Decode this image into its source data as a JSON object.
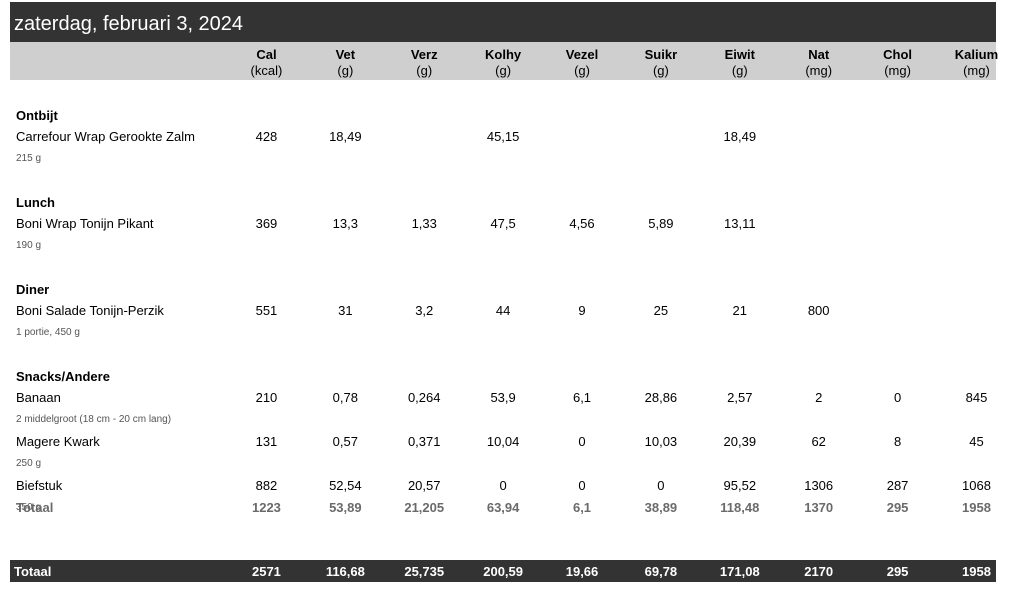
{
  "date": "zaterdag, februari 3, 2024",
  "columns": [
    {
      "label": "Cal",
      "unit": "(kcal)"
    },
    {
      "label": "Vet",
      "unit": "(g)"
    },
    {
      "label": "Verz",
      "unit": "(g)"
    },
    {
      "label": "Kolhy",
      "unit": "(g)"
    },
    {
      "label": "Vezel",
      "unit": "(g)"
    },
    {
      "label": "Suikr",
      "unit": "(g)"
    },
    {
      "label": "Eiwit",
      "unit": "(g)"
    },
    {
      "label": "Nat",
      "unit": "(mg)"
    },
    {
      "label": "Chol",
      "unit": "(mg)"
    },
    {
      "label": "Kalium",
      "unit": "(mg)"
    }
  ],
  "meals": [
    {
      "title": "Ontbijt",
      "items": [
        {
          "name": "Carrefour Wrap Gerookte Zalm",
          "serving": "215 g",
          "values": [
            "428",
            "18,49",
            "",
            "45,15",
            "",
            "",
            "18,49",
            "",
            "",
            ""
          ]
        }
      ]
    },
    {
      "title": "Lunch",
      "items": [
        {
          "name": "Boni Wrap Tonijn Pikant",
          "serving": "190 g",
          "values": [
            "369",
            "13,3",
            "1,33",
            "47,5",
            "4,56",
            "5,89",
            "13,11",
            "",
            "",
            ""
          ]
        }
      ]
    },
    {
      "title": "Diner",
      "items": [
        {
          "name": "Boni Salade Tonijn-Perzik",
          "serving": "1 portie, 450 g",
          "values": [
            "551",
            "31",
            "3,2",
            "44",
            "9",
            "25",
            "21",
            "800",
            "",
            ""
          ]
        }
      ]
    },
    {
      "title": "Snacks/Andere",
      "items": [
        {
          "name": "Banaan",
          "serving": "2 middelgroot (18 cm - 20 cm lang)",
          "values": [
            "210",
            "0,78",
            "0,264",
            "53,9",
            "6,1",
            "28,86",
            "2,57",
            "2",
            "0",
            "845"
          ]
        },
        {
          "name": "Magere Kwark",
          "serving": "250 g",
          "values": [
            "131",
            "0,57",
            "0,371",
            "10,04",
            "0",
            "10,03",
            "20,39",
            "62",
            "8",
            "45"
          ]
        },
        {
          "name": "Biefstuk",
          "serving": "350 g",
          "values": [
            "882",
            "52,54",
            "20,57",
            "0",
            "0",
            "0",
            "95,52",
            "1306",
            "287",
            "1068"
          ]
        }
      ],
      "total": {
        "label": "Totaal",
        "values": [
          "1223",
          "53,89",
          "21,205",
          "63,94",
          "6,1",
          "38,89",
          "118,48",
          "1370",
          "295",
          "1958"
        ]
      }
    }
  ],
  "grand_total": {
    "label": "Totaal",
    "values": [
      "2571",
      "116,68",
      "25,735",
      "200,59",
      "19,66",
      "69,78",
      "171,08",
      "2170",
      "295",
      "1958"
    ]
  }
}
